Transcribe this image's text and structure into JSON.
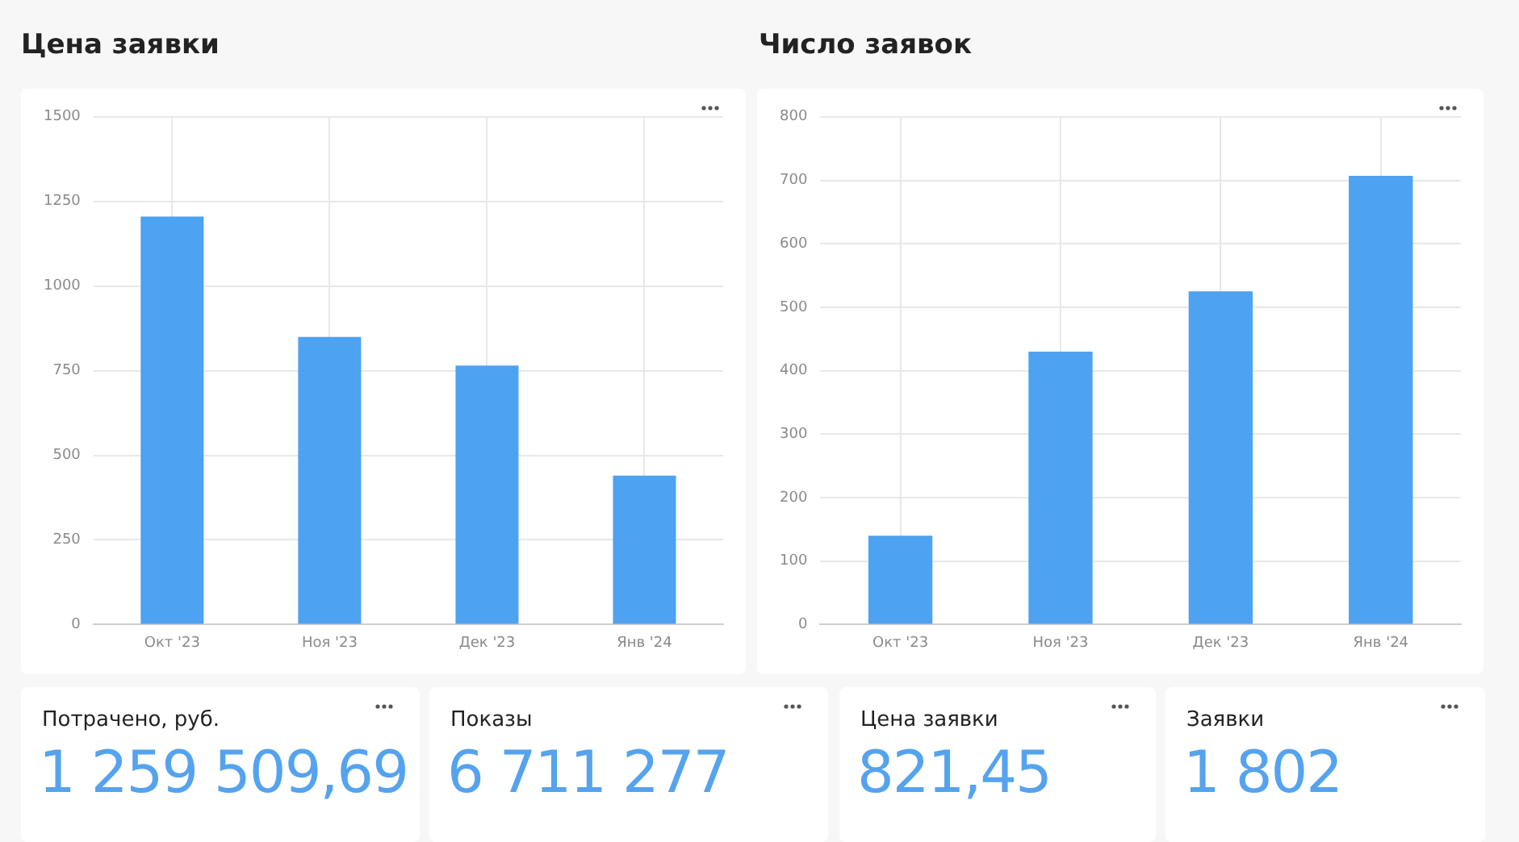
{
  "chart_data": [
    {
      "type": "bar",
      "title": "Цена заявки",
      "categories": [
        "Окт '23",
        "Ноя '23",
        "Дек '23",
        "Янв '24"
      ],
      "values": [
        1205,
        850,
        765,
        440
      ],
      "color": "#4da2f1",
      "ylim": [
        0,
        1500
      ],
      "yticks": [
        0,
        250,
        500,
        750,
        1000,
        1250,
        1500
      ],
      "grid": true
    },
    {
      "type": "bar",
      "title": "Число заявок",
      "categories": [
        "Окт '23",
        "Ноя '23",
        "Дек '23",
        "Янв '24"
      ],
      "values": [
        140,
        430,
        525,
        707
      ],
      "color": "#4da2f1",
      "ylim": [
        0,
        800
      ],
      "yticks": [
        0,
        100,
        200,
        300,
        400,
        500,
        600,
        700,
        800
      ],
      "grid": true
    },
    {
      "type": "other",
      "title": "Потрачено, руб.",
      "annotations": [
        "1 259 509,69"
      ]
    },
    {
      "type": "other",
      "title": "Показы",
      "annotations": [
        "6 711 277"
      ]
    },
    {
      "type": "other",
      "title": "Цена заявки",
      "annotations": [
        "821,45"
      ]
    },
    {
      "type": "other",
      "title": "Заявки",
      "annotations": [
        "1 802"
      ]
    }
  ]
}
